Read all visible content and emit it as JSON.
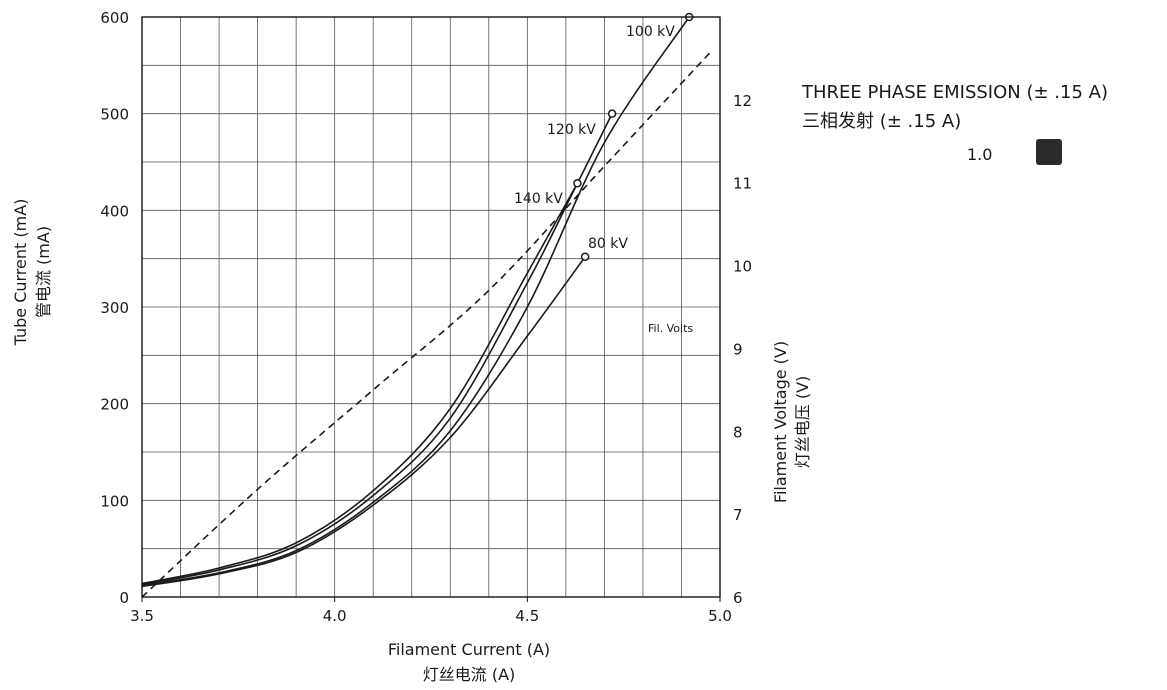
{
  "chart_data": {
    "type": "line",
    "xlabel": "Filament Current (A)",
    "xlabel_cn": "灯丝电流 (A)",
    "ylabel": "Tube Current (mA)",
    "ylabel_cn": "管电流 (mA)",
    "y2label": "Filament Voltage (V)",
    "y2label_cn": "灯丝电压 (V)",
    "xlim": [
      3.5,
      5.0
    ],
    "ylim": [
      0,
      600
    ],
    "y2lim": [
      6,
      13
    ],
    "x_ticks": [
      "3.5",
      "4.0",
      "4.5",
      "5.0"
    ],
    "y_ticks": [
      "0",
      "100",
      "200",
      "300",
      "400",
      "500",
      "600"
    ],
    "y2_ticks": [
      "6",
      "7",
      "8",
      "9",
      "10",
      "11",
      "12"
    ],
    "grid": true,
    "series": [
      {
        "name": "100 kV",
        "axis": "left",
        "style": "solid",
        "end_marker": true,
        "x": [
          3.5,
          3.7,
          3.9,
          4.1,
          4.3,
          4.5,
          4.7,
          4.92
        ],
        "y": [
          12,
          25,
          48,
          98,
          172,
          300,
          470,
          600
        ]
      },
      {
        "name": "120 kV",
        "axis": "left",
        "style": "solid",
        "end_marker": true,
        "x": [
          3.5,
          3.7,
          3.9,
          4.1,
          4.3,
          4.5,
          4.62,
          4.72
        ],
        "y": [
          13,
          28,
          53,
          105,
          185,
          325,
          420,
          500
        ]
      },
      {
        "name": "140 kV",
        "axis": "left",
        "style": "solid",
        "end_marker": true,
        "x": [
          3.5,
          3.7,
          3.9,
          4.1,
          4.3,
          4.5,
          4.63
        ],
        "y": [
          14,
          30,
          56,
          110,
          195,
          335,
          428
        ]
      },
      {
        "name": "80 kV",
        "axis": "left",
        "style": "solid",
        "end_marker": true,
        "x": [
          3.5,
          3.7,
          3.9,
          4.1,
          4.3,
          4.5,
          4.65
        ],
        "y": [
          11,
          24,
          46,
          95,
          165,
          270,
          352
        ]
      },
      {
        "name": "Fil. Volts",
        "axis": "right",
        "style": "dashed",
        "end_marker": false,
        "x": [
          3.5,
          3.8,
          4.1,
          4.4,
          4.7,
          4.98
        ],
        "y": [
          6.0,
          7.3,
          8.5,
          9.7,
          11.2,
          12.6
        ]
      }
    ],
    "labels": {
      "s100": "100 kV",
      "s120": "120 kV",
      "s140": "140 kV",
      "s80": "80 kV",
      "fil": "Fil. Volts"
    }
  },
  "legend": {
    "title_en": "THREE PHASE EMISSION (± .15 A)",
    "title_cn": "三相发射 (± .15 A)",
    "value": "1.0",
    "swatch_color": "#2b2b2b"
  }
}
